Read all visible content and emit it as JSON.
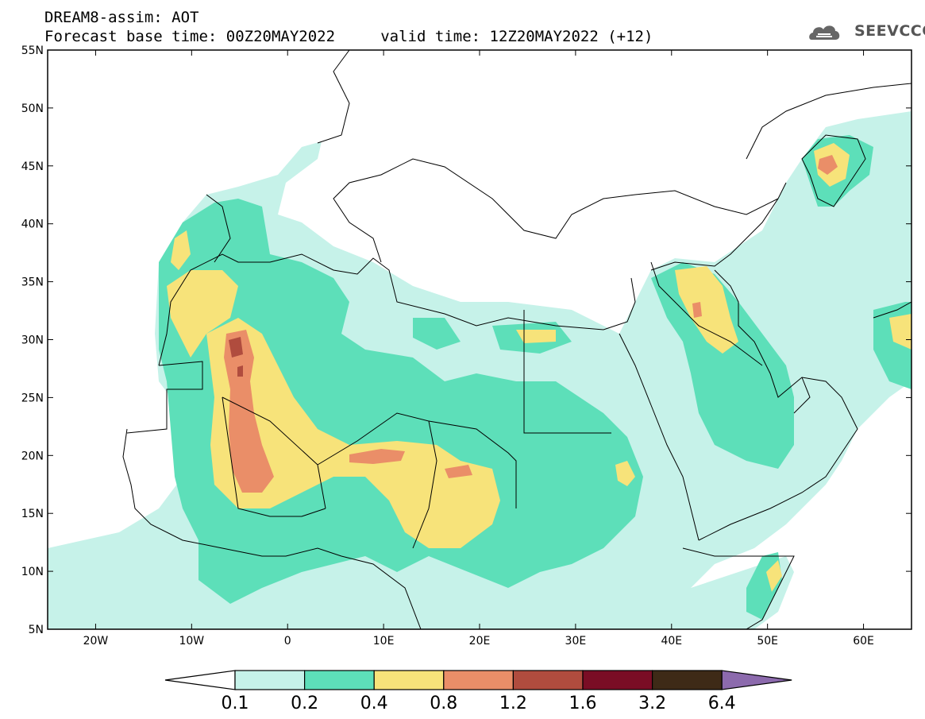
{
  "header": {
    "title_line1": "DREAM8-assim: AOT",
    "title_line2": "Forecast base time: 00Z20MAY2022     valid time: 12Z20MAY2022 (+12)",
    "logo_text": "SEEVCCC",
    "logo_icon": "cloud-icon"
  },
  "map": {
    "lon_range": [
      -25,
      65
    ],
    "lat_range": [
      5,
      55
    ],
    "lon_ticks": [
      {
        "value": -20,
        "label": "20W"
      },
      {
        "value": -10,
        "label": "10W"
      },
      {
        "value": 0,
        "label": "0"
      },
      {
        "value": 10,
        "label": "10E"
      },
      {
        "value": 20,
        "label": "20E"
      },
      {
        "value": 30,
        "label": "30E"
      },
      {
        "value": 40,
        "label": "40E"
      },
      {
        "value": 50,
        "label": "50E"
      },
      {
        "value": 60,
        "label": "60E"
      }
    ],
    "lat_ticks": [
      {
        "value": 55,
        "label": "55N"
      },
      {
        "value": 50,
        "label": "50N"
      },
      {
        "value": 45,
        "label": "45N"
      },
      {
        "value": 40,
        "label": "40N"
      },
      {
        "value": 35,
        "label": "35N"
      },
      {
        "value": 30,
        "label": "30N"
      },
      {
        "value": 25,
        "label": "25N"
      },
      {
        "value": 20,
        "label": "20N"
      },
      {
        "value": 15,
        "label": "15N"
      },
      {
        "value": 10,
        "label": "10N"
      },
      {
        "value": 5,
        "label": "5N"
      }
    ]
  },
  "colorbar": {
    "labels": [
      "0.1",
      "0.2",
      "0.4",
      "0.8",
      "1.2",
      "1.6",
      "3.2",
      "6.4"
    ],
    "colors": [
      "#c6f2e9",
      "#5ddfb9",
      "#f7e37a",
      "#ea8e68",
      "#b04c3e",
      "#7a0d25",
      "#3e2a17"
    ],
    "under_color": "#ffffff",
    "over_color": "#8c6aad"
  }
}
